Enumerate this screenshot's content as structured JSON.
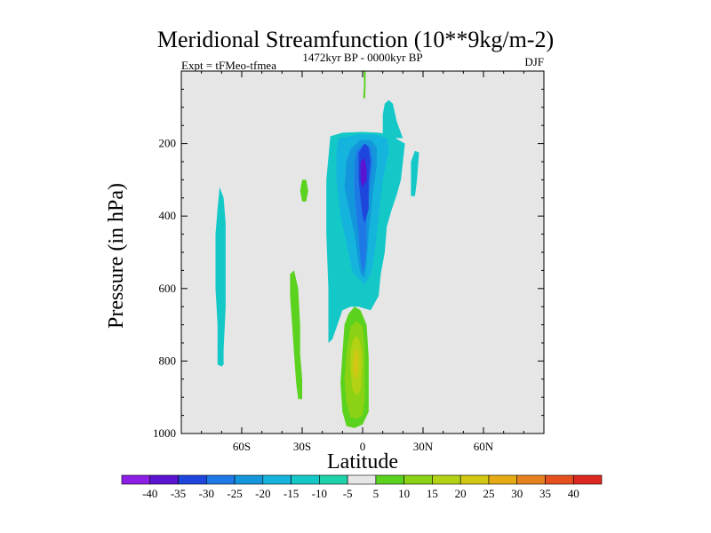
{
  "chart_data": {
    "type": "heatmap",
    "title": "Meridional Streamfunction (10**9kg/m-2)",
    "subtitle_left": "Expt = tFMeo-tfmea",
    "subtitle_center": "1472kyr BP - 0000kyr BP",
    "subtitle_right": "DJF",
    "xlabel": "Latitude",
    "ylabel": "Pressure (in hPa)",
    "xlim": [
      -90,
      90
    ],
    "ylim": [
      0,
      1000
    ],
    "y_inverted": true,
    "x_ticks": [
      {
        "value": -60,
        "label": "60S"
      },
      {
        "value": -30,
        "label": "30S"
      },
      {
        "value": 0,
        "label": "0"
      },
      {
        "value": 30,
        "label": "30N"
      },
      {
        "value": 60,
        "label": "60N"
      }
    ],
    "y_ticks": [
      {
        "value": 200,
        "label": "200"
      },
      {
        "value": 400,
        "label": "400"
      },
      {
        "value": 600,
        "label": "600"
      },
      {
        "value": 800,
        "label": "800"
      },
      {
        "value": 1000,
        "label": "1000"
      }
    ],
    "background_color": "#e6e6e6",
    "colorbar": {
      "levels": [
        "-40",
        "-35",
        "-30",
        "-25",
        "-20",
        "-15",
        "-10",
        "-5",
        "5",
        "10",
        "15",
        "20",
        "25",
        "30",
        "35",
        "40"
      ],
      "colors": [
        "#8c1ee6",
        "#5a14d2",
        "#1e46dc",
        "#1e78e6",
        "#1496dc",
        "#14b4dc",
        "#14c8c8",
        "#1ed2aa",
        "#e6e6e6",
        "#5ad21e",
        "#8cd214",
        "#b4d214",
        "#d2c814",
        "#e6aa14",
        "#e6821e",
        "#e6501e",
        "#dc281e"
      ]
    },
    "regions": [
      {
        "name": "pos-5",
        "points": [
          [
            0.5,
            0
          ],
          [
            1.5,
            0
          ],
          [
            1.5,
            35
          ],
          [
            1.3,
            75
          ],
          [
            0.3,
            75
          ],
          [
            0.7,
            35
          ]
        ]
      },
      {
        "name": "neg-10",
        "points": [
          [
            -16,
            180
          ],
          [
            -10,
            170
          ],
          [
            0,
            168
          ],
          [
            8,
            170
          ],
          [
            13,
            175
          ],
          [
            21,
            200
          ],
          [
            19,
            300
          ],
          [
            17,
            340
          ],
          [
            14,
            390
          ],
          [
            12,
            430
          ],
          [
            11,
            500
          ],
          [
            9,
            560
          ],
          [
            8,
            620
          ],
          [
            4,
            660
          ],
          [
            -2,
            650
          ],
          [
            -6,
            650
          ],
          [
            -10,
            660
          ],
          [
            -15,
            740
          ],
          [
            -17,
            750
          ],
          [
            -17,
            600
          ],
          [
            -18,
            450
          ],
          [
            -18,
            300
          ]
        ]
      },
      {
        "name": "neg-10-left",
        "points": [
          [
            -72,
            380
          ],
          [
            -71,
            320
          ],
          [
            -69,
            350
          ],
          [
            -68,
            420
          ],
          [
            -68,
            500
          ],
          [
            -68,
            650
          ],
          [
            -69,
            770
          ],
          [
            -69,
            810
          ],
          [
            -70,
            815
          ],
          [
            -72,
            810
          ],
          [
            -72,
            700
          ],
          [
            -73,
            600
          ],
          [
            -73,
            450
          ]
        ]
      },
      {
        "name": "neg-10-spike",
        "points": [
          [
            10,
            185
          ],
          [
            10,
            120
          ],
          [
            11,
            90
          ],
          [
            13,
            80
          ],
          [
            15,
            90
          ],
          [
            17,
            140
          ],
          [
            20,
            185
          ]
        ]
      },
      {
        "name": "neg-10-right",
        "points": [
          [
            24,
            250
          ],
          [
            26,
            220
          ],
          [
            28,
            225
          ],
          [
            27,
            300
          ],
          [
            26,
            345
          ],
          [
            24,
            345
          ]
        ]
      },
      {
        "name": "neg-15",
        "points": [
          [
            -12,
            185
          ],
          [
            -2,
            175
          ],
          [
            6,
            175
          ],
          [
            12,
            185
          ],
          [
            13,
            220
          ],
          [
            10,
            300
          ],
          [
            8,
            400
          ],
          [
            6,
            500
          ],
          [
            4,
            560
          ],
          [
            1,
            590
          ],
          [
            -3,
            565
          ],
          [
            -5,
            555
          ],
          [
            -7,
            500
          ],
          [
            -11,
            400
          ],
          [
            -13,
            300
          ],
          [
            -13,
            220
          ]
        ]
      },
      {
        "name": "neg-20",
        "points": [
          [
            -6,
            215
          ],
          [
            -1,
            190
          ],
          [
            4,
            190
          ],
          [
            7,
            210
          ],
          [
            7,
            260
          ],
          [
            5,
            340
          ],
          [
            4,
            400
          ],
          [
            3,
            450
          ],
          [
            2,
            530
          ],
          [
            1,
            570
          ],
          [
            -1,
            560
          ],
          [
            -2,
            530
          ],
          [
            -4,
            450
          ],
          [
            -6,
            400
          ],
          [
            -9,
            320
          ],
          [
            -8,
            250
          ]
        ]
      },
      {
        "name": "neg-25",
        "points": [
          [
            -3,
            220
          ],
          [
            1,
            200
          ],
          [
            4,
            210
          ],
          [
            5,
            250
          ],
          [
            3,
            350
          ],
          [
            2,
            400
          ],
          [
            2,
            480
          ],
          [
            1,
            540
          ],
          [
            0,
            555
          ],
          [
            -1,
            520
          ],
          [
            -2,
            450
          ],
          [
            -3,
            400
          ],
          [
            -4,
            330
          ],
          [
            -4,
            260
          ]
        ]
      },
      {
        "name": "neg-30",
        "points": [
          [
            -2,
            225
          ],
          [
            1,
            200
          ],
          [
            3,
            210
          ],
          [
            4,
            250
          ],
          [
            3,
            300
          ],
          [
            3,
            380
          ],
          [
            1,
            420
          ],
          [
            0,
            400
          ],
          [
            -1,
            350
          ],
          [
            -2,
            300
          ]
        ]
      },
      {
        "name": "neg-35",
        "points": [
          [
            -1,
            250
          ],
          [
            1,
            240
          ],
          [
            2,
            270
          ],
          [
            2,
            300
          ],
          [
            0,
            320
          ],
          [
            -1,
            300
          ]
        ]
      },
      {
        "name": "pos-5-mid",
        "points": [
          [
            -30,
            300
          ],
          [
            -28,
            300
          ],
          [
            -27,
            330
          ],
          [
            -28,
            360
          ],
          [
            -30,
            360
          ],
          [
            -31,
            330
          ]
        ]
      },
      {
        "name": "pos-5-low",
        "points": [
          [
            -36,
            560
          ],
          [
            -34,
            550
          ],
          [
            -32,
            600
          ],
          [
            -31,
            700
          ],
          [
            -31,
            780
          ],
          [
            -30,
            850
          ],
          [
            -30,
            905
          ],
          [
            -32,
            905
          ],
          [
            -33,
            860
          ],
          [
            -34,
            780
          ],
          [
            -35,
            700
          ],
          [
            -36,
            620
          ]
        ]
      },
      {
        "name": "pos-5-center",
        "points": [
          [
            -7,
            670
          ],
          [
            -4,
            650
          ],
          [
            -1,
            660
          ],
          [
            2,
            700
          ],
          [
            3,
            790
          ],
          [
            3,
            860
          ],
          [
            3,
            940
          ],
          [
            0,
            975
          ],
          [
            -4,
            985
          ],
          [
            -8,
            980
          ],
          [
            -10,
            940
          ],
          [
            -11,
            860
          ],
          [
            -10,
            780
          ],
          [
            -9,
            700
          ]
        ]
      },
      {
        "name": "pos-10",
        "points": [
          [
            -6,
            705
          ],
          [
            -3,
            690
          ],
          [
            0,
            705
          ],
          [
            1,
            760
          ],
          [
            1,
            850
          ],
          [
            1,
            905
          ],
          [
            0,
            950
          ],
          [
            -3,
            960
          ],
          [
            -6,
            955
          ],
          [
            -8,
            915
          ],
          [
            -9,
            850
          ],
          [
            -8,
            780
          ]
        ]
      },
      {
        "name": "pos-15",
        "points": [
          [
            -5,
            745
          ],
          [
            -3,
            730
          ],
          [
            -1,
            750
          ],
          [
            0,
            800
          ],
          [
            -1,
            880
          ],
          [
            -3,
            895
          ],
          [
            -5,
            880
          ],
          [
            -6,
            820
          ],
          [
            -6,
            780
          ]
        ]
      },
      {
        "name": "pos-20",
        "points": [
          [
            -4,
            775
          ],
          [
            -3,
            765
          ],
          [
            -2,
            780
          ],
          [
            -2,
            820
          ],
          [
            -3,
            845
          ],
          [
            -4,
            845
          ],
          [
            -5,
            820
          ]
        ]
      }
    ]
  }
}
